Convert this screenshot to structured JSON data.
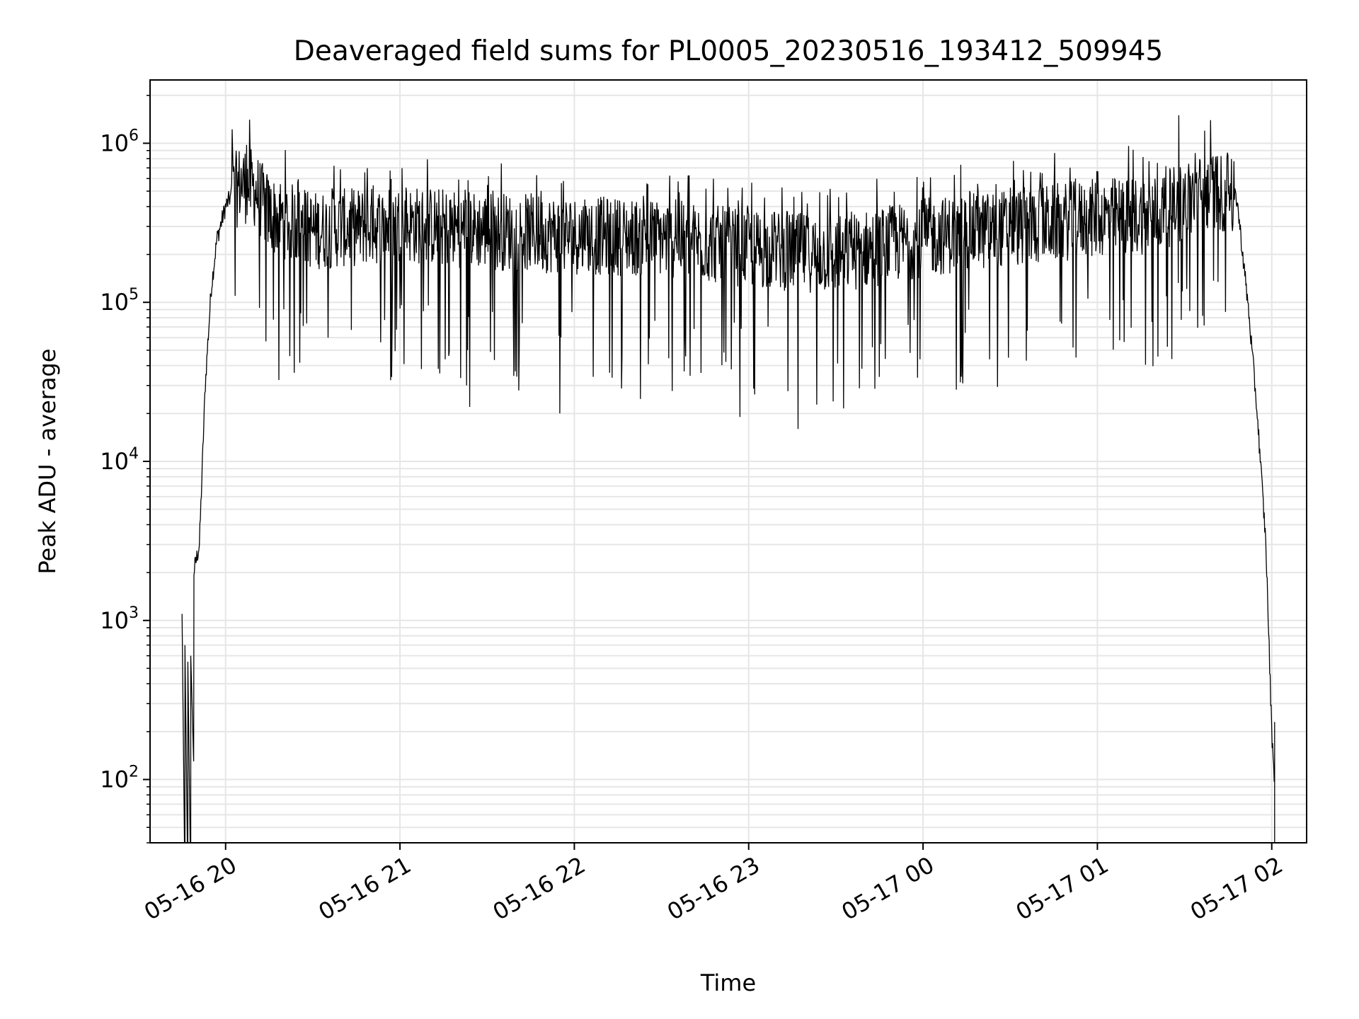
{
  "chart_data": {
    "type": "line",
    "title": "Deaveraged field sums for PL0005_20230516_193412_509945",
    "xlabel": "Time",
    "ylabel": "Peak ADU - average",
    "yscale": "log",
    "grid": true,
    "xlim": [
      "2023-05-16 19:34",
      "2023-05-17 02:12"
    ],
    "ylim": [
      40,
      2500000
    ],
    "x_ticks": [
      {
        "value": "2023-05-16 20:00",
        "label": "05-16 20"
      },
      {
        "value": "2023-05-16 21:00",
        "label": "05-16 21"
      },
      {
        "value": "2023-05-16 22:00",
        "label": "05-16 22"
      },
      {
        "value": "2023-05-16 23:00",
        "label": "05-16 23"
      },
      {
        "value": "2023-05-17 00:00",
        "label": "05-17 00"
      },
      {
        "value": "2023-05-17 01:00",
        "label": "05-17 01"
      },
      {
        "value": "2023-05-17 02:00",
        "label": "05-17 02"
      }
    ],
    "y_ticks": [
      {
        "value": 100,
        "base": "10",
        "exp": "2"
      },
      {
        "value": 1000,
        "base": "10",
        "exp": "3"
      },
      {
        "value": 10000,
        "base": "10",
        "exp": "4"
      },
      {
        "value": 100000,
        "base": "10",
        "exp": "5"
      },
      {
        "value": 1000000,
        "base": "10",
        "exp": "6"
      }
    ],
    "series": [
      {
        "color": "#000000",
        "envelope_points": [
          {
            "x": "2023-05-16 19:45",
            "y": 1100
          },
          {
            "x": "2023-05-16 19:47",
            "y": 600
          },
          {
            "x": "2023-05-16 19:49",
            "y": 2000
          },
          {
            "x": "2023-05-16 19:51",
            "y": 3000
          },
          {
            "x": "2023-05-16 19:53",
            "y": 30000
          },
          {
            "x": "2023-05-16 19:55",
            "y": 120000
          },
          {
            "x": "2023-05-16 19:57",
            "y": 250000
          },
          {
            "x": "2023-05-16 20:00",
            "y": 400000
          },
          {
            "x": "2023-05-16 20:05",
            "y": 600000
          },
          {
            "x": "2023-05-16 20:10",
            "y": 550000
          },
          {
            "x": "2023-05-16 20:15",
            "y": 380000
          },
          {
            "x": "2023-05-16 20:30",
            "y": 300000
          },
          {
            "x": "2023-05-16 21:00",
            "y": 330000
          },
          {
            "x": "2023-05-16 21:30",
            "y": 300000
          },
          {
            "x": "2023-05-16 22:00",
            "y": 280000
          },
          {
            "x": "2023-05-16 22:30",
            "y": 270000
          },
          {
            "x": "2023-05-16 23:00",
            "y": 230000
          },
          {
            "x": "2023-05-16 23:30",
            "y": 210000
          },
          {
            "x": "2023-05-17 00:00",
            "y": 270000
          },
          {
            "x": "2023-05-17 00:30",
            "y": 310000
          },
          {
            "x": "2023-05-17 01:00",
            "y": 360000
          },
          {
            "x": "2023-05-17 01:20",
            "y": 380000
          },
          {
            "x": "2023-05-17 01:40",
            "y": 550000
          },
          {
            "x": "2023-05-17 01:48",
            "y": 450000
          },
          {
            "x": "2023-05-17 01:52",
            "y": 90000
          },
          {
            "x": "2023-05-17 01:55",
            "y": 20000
          },
          {
            "x": "2023-05-17 01:58",
            "y": 3000
          },
          {
            "x": "2023-05-17 02:00",
            "y": 200
          },
          {
            "x": "2023-05-17 02:01",
            "y": 100
          }
        ],
        "notable_points": [
          {
            "x": "2023-05-17 01:28",
            "y": 1500000
          },
          {
            "x": "2023-05-16 23:17",
            "y": 16000
          },
          {
            "x": "2023-05-16 22:57",
            "y": 19000
          },
          {
            "x": "2023-05-16 21:55",
            "y": 20000
          },
          {
            "x": "2023-05-16 21:24",
            "y": 22000
          }
        ]
      }
    ]
  }
}
